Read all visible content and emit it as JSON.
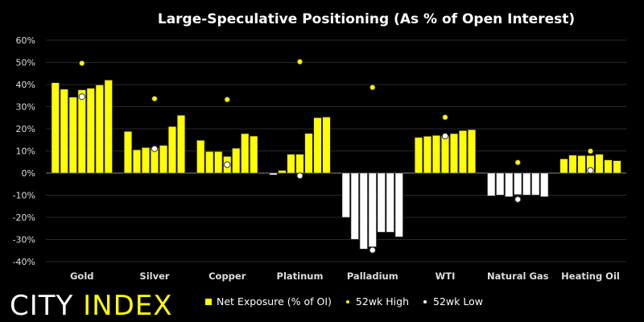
{
  "chart_data": {
    "type": "bar",
    "title": "Large-Speculative Positioning (As % of Open Interest)",
    "xlabel": "",
    "ylabel": "",
    "ylim": [
      -40,
      60
    ],
    "yticks": [
      "60%",
      "50%",
      "40%",
      "30%",
      "20%",
      "10%",
      "0%",
      "-10%",
      "-20%",
      "-30%",
      "-40%"
    ],
    "ytick_values": [
      60,
      50,
      40,
      30,
      20,
      10,
      0,
      -10,
      -20,
      -30,
      -40
    ],
    "grid": true,
    "legend_position": "bottom",
    "categories": [
      "Gold",
      "Silver",
      "Copper",
      "Platinum",
      "Palladium",
      "WTI",
      "Natural Gas",
      "Heating Oil"
    ],
    "series": [
      {
        "name": "Net Exposure (% of OI)",
        "type": "bar",
        "values": [
          [
            40.8,
            37.9,
            34.3,
            37.6,
            38.3,
            39.8,
            42.0
          ],
          [
            18.8,
            10.5,
            11.5,
            11.5,
            12.5,
            21.0,
            26.1
          ],
          [
            14.8,
            9.7,
            9.7,
            7.5,
            11.2,
            17.8,
            16.7
          ],
          [
            -0.8,
            1.2,
            8.5,
            8.5,
            17.9,
            25.0,
            25.3
          ],
          [
            -20.0,
            -29.9,
            -34.3,
            -33.3,
            -26.7,
            -26.7,
            -28.8
          ],
          [
            16.1,
            16.6,
            17.0,
            16.8,
            17.8,
            19.2,
            19.6
          ],
          [
            -10.3,
            -9.9,
            -10.7,
            -9.7,
            -9.9,
            -9.9,
            -10.7
          ],
          [
            6.4,
            8.1,
            7.9,
            7.9,
            8.5,
            5.9,
            5.6
          ]
        ]
      },
      {
        "name": "52wk High",
        "type": "scatter",
        "values": [
          49.6,
          33.6,
          33.2,
          50.3,
          38.7,
          25.2,
          4.8,
          9.9
        ]
      },
      {
        "name": "52wk Low",
        "type": "scatter",
        "values": [
          34.5,
          11.0,
          3.8,
          -1.2,
          -34.8,
          16.7,
          -11.9,
          1.2
        ]
      }
    ],
    "colors": {
      "positive": "#ffff00",
      "negative": "#ffffff",
      "high": "#ffff00",
      "low": "#ffffff",
      "grid": "#2a2a2a"
    }
  },
  "brand": {
    "part1": "CITY",
    "part2": "INDEX"
  }
}
